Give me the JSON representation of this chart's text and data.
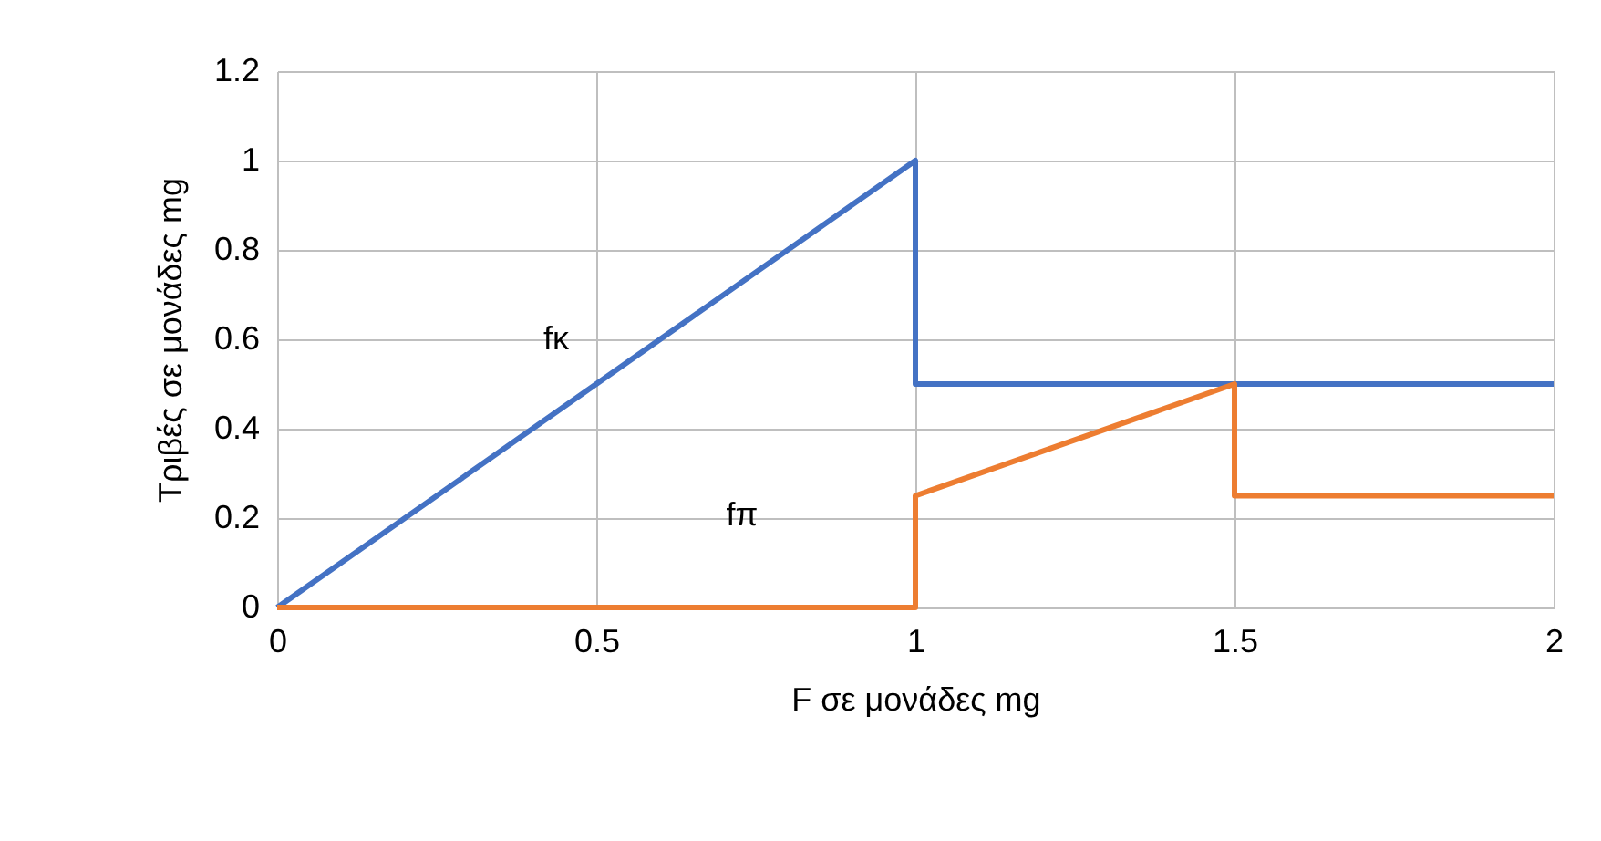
{
  "chart_data": {
    "type": "line",
    "xlabel": "F σε μονάδες mg",
    "ylabel": "Τριβές σε μονάδες mg",
    "xlim": [
      0,
      2
    ],
    "xticks": [
      0,
      0.5,
      1,
      1.5,
      2
    ],
    "ylim": [
      0,
      1.2
    ],
    "yticks": [
      0,
      0.2,
      0.4,
      0.6,
      0.8,
      1,
      1.2
    ],
    "grid": true,
    "legend": false,
    "marker": "none",
    "series": [
      {
        "name": "fκ",
        "color": "#4472c4",
        "x": [
          0,
          1,
          1,
          2
        ],
        "values": [
          0,
          1,
          0.5,
          0.5
        ]
      },
      {
        "name": "fπ",
        "color": "#ed7d31",
        "x": [
          0,
          1,
          1,
          1.5,
          1.5,
          2
        ],
        "values": [
          0,
          0,
          0.25,
          0.5,
          0.25,
          0.25
        ]
      }
    ]
  }
}
